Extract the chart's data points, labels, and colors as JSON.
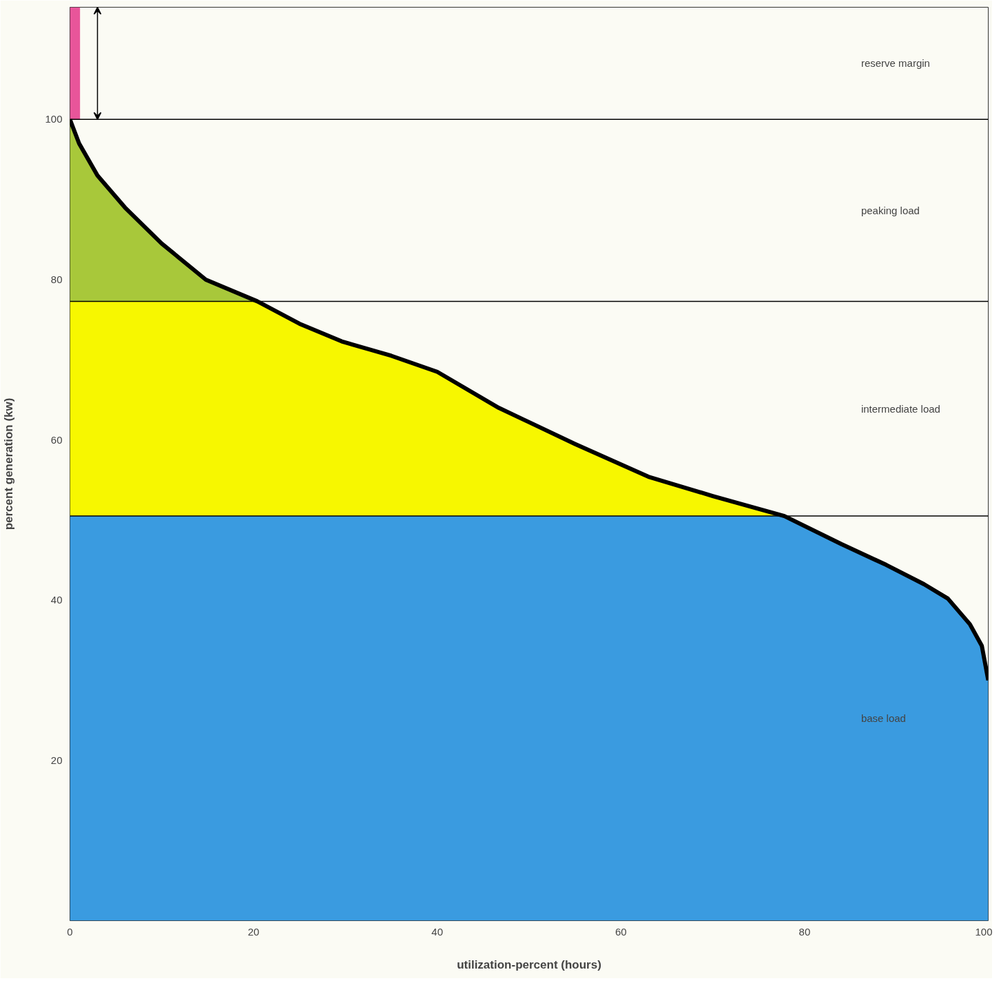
{
  "chart_data": {
    "type": "area",
    "stacked": true,
    "xlabel": "utilization-percent (hours)",
    "ylabel": "percent generation (kw)",
    "x": [
      0,
      1,
      3,
      6,
      10,
      14.8,
      20.4,
      25,
      29.6,
      35,
      40,
      46.7,
      55,
      63,
      70,
      77.8,
      84,
      88.9,
      93,
      95.6,
      98,
      99.3,
      100
    ],
    "xlim": [
      0,
      100
    ],
    "ylim": [
      0,
      114
    ],
    "xticks": [
      0,
      20,
      40,
      60,
      80,
      100
    ],
    "yticks": [
      20,
      40,
      60,
      80,
      100
    ],
    "grid": false,
    "series": [
      {
        "color": "#3a9be0",
        "values": [
          50.5,
          50.5,
          50.5,
          50.5,
          50.5,
          50.5,
          50.5,
          50.5,
          50.5,
          50.5,
          50.5,
          50.5,
          50.5,
          50.5,
          50.5,
          50.5,
          47,
          44.4,
          42,
          40.2,
          37,
          34.3,
          30
        ]
      },
      {
        "color": "#f7f700",
        "values": [
          26.8,
          26.8,
          26.8,
          26.8,
          26.8,
          26.8,
          26.8,
          24,
          21.8,
          20,
          18,
          13.5,
          9,
          4.9,
          2.5,
          0,
          0,
          0,
          0,
          0,
          0,
          0,
          0
        ]
      },
      {
        "color": "#a8c83a",
        "values": [
          22.7,
          19.7,
          15.7,
          11.7,
          7.2,
          2.7,
          0,
          0,
          0,
          0,
          0,
          0,
          0,
          0,
          0,
          0,
          0,
          0,
          0,
          0,
          0,
          0,
          0
        ]
      },
      {
        "type": "bar",
        "color": "#e8559a",
        "x": [
          0.5
        ],
        "base": [
          100
        ],
        "values": [
          14
        ]
      }
    ],
    "ref_lines": [
      {
        "axis": "y",
        "value": 100,
        "color": "#000000"
      },
      {
        "axis": "y",
        "value": 77.3,
        "color": "#000000"
      },
      {
        "axis": "y",
        "value": 50.5,
        "color": "#000000"
      }
    ],
    "annotations": [
      "reserve margin",
      "peaking load",
      "intermediate load",
      "base load"
    ]
  }
}
